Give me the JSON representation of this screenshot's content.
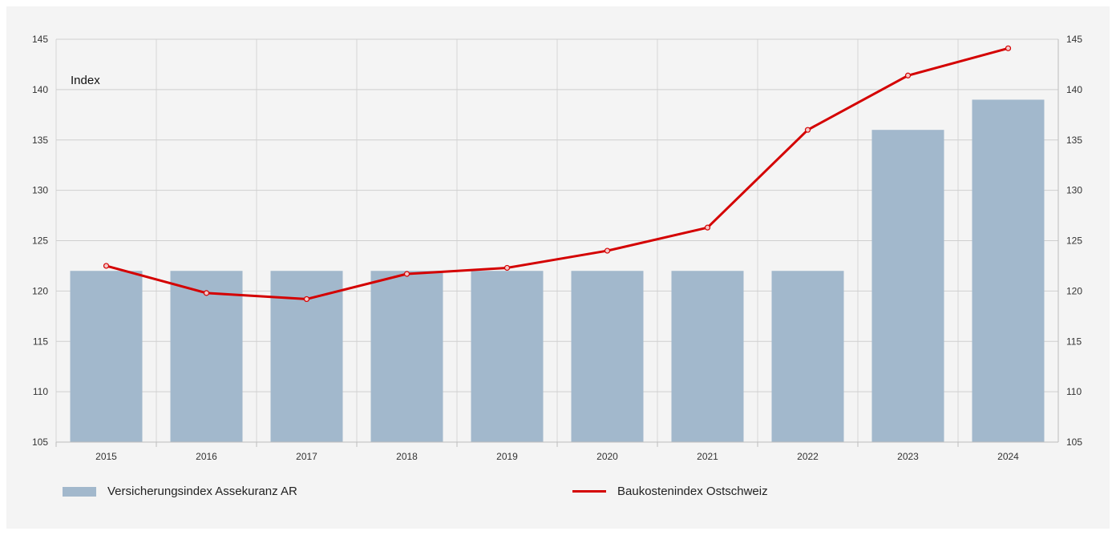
{
  "chart_data": {
    "type": "bar",
    "ylabel": "Index",
    "ylim": [
      105,
      145
    ],
    "yticks": [
      105,
      110,
      115,
      120,
      125,
      130,
      135,
      140,
      145
    ],
    "secondary_y_ticks": [
      105,
      110,
      115,
      120,
      125,
      130,
      135,
      140,
      145
    ],
    "grid": true,
    "legend_position": "bottom",
    "categories": [
      "2015",
      "2016",
      "2017",
      "2018",
      "2019",
      "2020",
      "2021",
      "2022",
      "2023",
      "2024"
    ],
    "series": [
      {
        "name": "Versicherungsindex Assekuranz AR",
        "type": "bar",
        "color": "#a2b8cc",
        "values": [
          122,
          122,
          122,
          122,
          122,
          122,
          122,
          122,
          136,
          139
        ]
      },
      {
        "name": "Baukostenindex Ostschweiz",
        "type": "line",
        "color": "#d40000",
        "values": [
          122.5,
          119.8,
          119.2,
          121.7,
          122.3,
          124.0,
          126.3,
          136.0,
          141.4,
          144.1
        ]
      }
    ]
  }
}
